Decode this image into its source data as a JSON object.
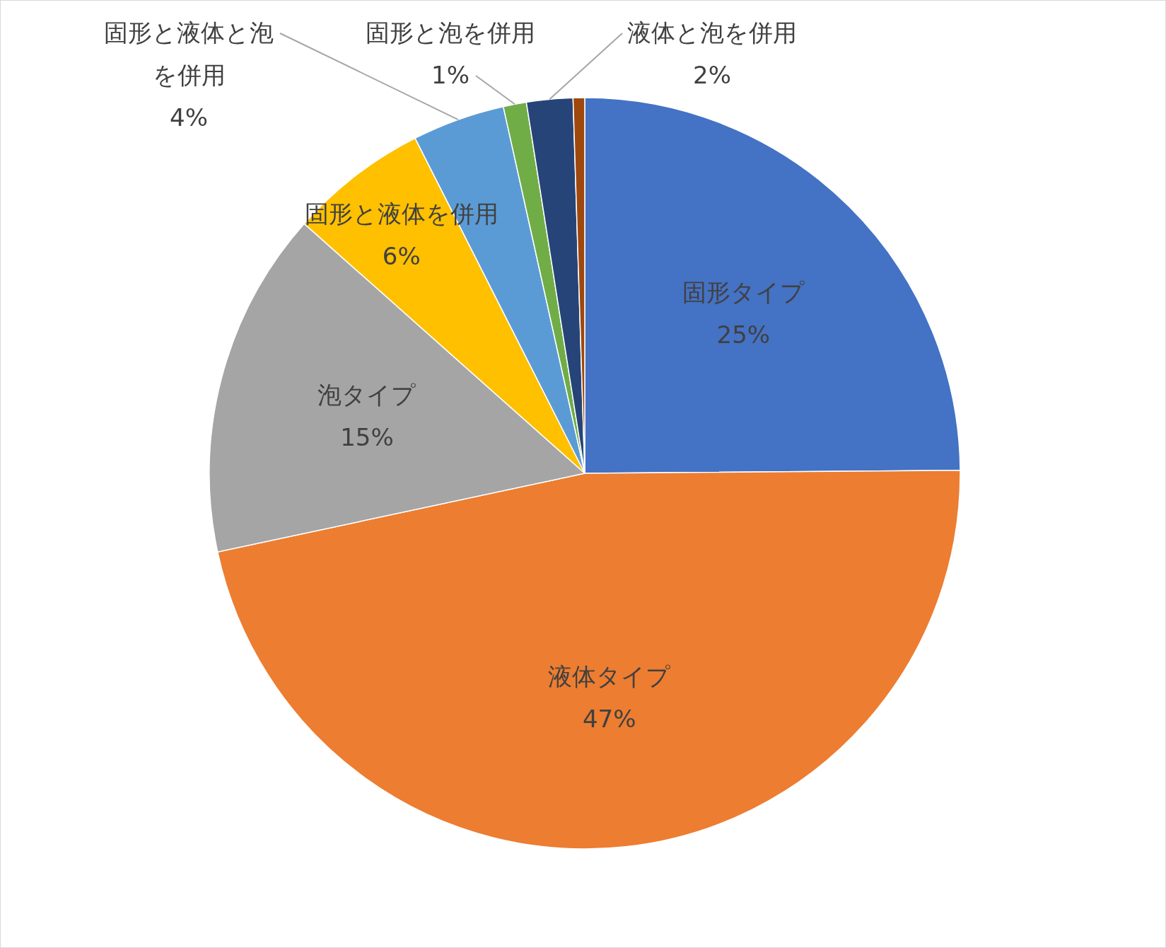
{
  "chart_data": {
    "type": "pie",
    "categories": [
      "固形タイプ",
      "液体タイプ",
      "泡タイプ",
      "固形と液体を併用",
      "固形と液体と泡を併用",
      "固形と泡を併用",
      "液体と泡を併用",
      null
    ],
    "values": [
      25,
      47,
      15,
      6,
      4,
      1,
      2,
      0.5
    ],
    "value_labels": [
      "25%",
      "47%",
      "15%",
      "6%",
      "4%",
      "1%",
      "2%",
      null
    ],
    "colors": [
      "#4472c4",
      "#ed7d31",
      "#a5a5a5",
      "#ffc000",
      "#5b9bd5",
      "#70ad47",
      "#264478",
      "#9e480e"
    ]
  }
}
